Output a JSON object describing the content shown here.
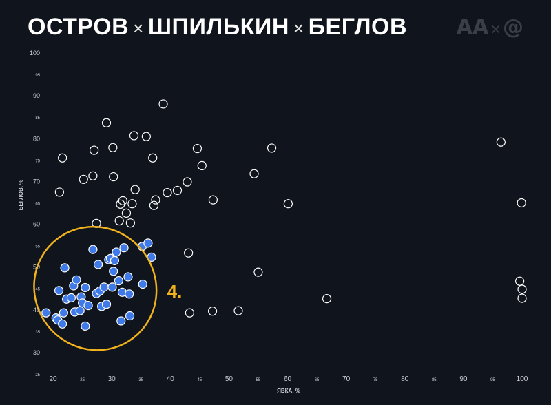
{
  "header": {
    "title_part1": "ОСТРОВ",
    "title_part2": "ШПИЛЬКИН",
    "title_part3": "БЕГЛОВ",
    "separator": "×",
    "logo_left": "AA",
    "logo_sep": "×",
    "logo_right": "@"
  },
  "chart_data": {
    "type": "scatter",
    "xlabel": "ЯВКА, %",
    "ylabel": "БЕГЛОВ, %",
    "xlim": [
      18,
      100
    ],
    "ylim": [
      25,
      100
    ],
    "x_ticks": [
      20,
      25,
      30,
      35,
      40,
      45,
      50,
      55,
      60,
      65,
      70,
      75,
      80,
      85,
      90,
      95,
      100
    ],
    "x_ticks_major": [
      20,
      30,
      40,
      50,
      60,
      70,
      80,
      90,
      100
    ],
    "y_ticks": [
      25,
      30,
      35,
      40,
      45,
      50,
      55,
      60,
      65,
      70,
      75,
      80,
      85,
      90,
      95,
      100
    ],
    "y_ticks_major": [
      30,
      40,
      50,
      60,
      70,
      80,
      90,
      100
    ],
    "grid": false,
    "colors": {
      "background": "#10141c",
      "highlight_fill": "#3f7ae8",
      "outline": "#ffffff",
      "ellipse": "#f2b21c"
    },
    "annotation": {
      "text": "4.",
      "x": 33,
      "y": 44
    },
    "highlight_region": {
      "cx": 27.2,
      "cy": 45,
      "rx": 10.3,
      "ry": 14.6
    },
    "series": [
      {
        "style": "outline",
        "points": [
          [
            21.1,
            67.5
          ],
          [
            21.6,
            75.5
          ],
          [
            25.2,
            70.5
          ],
          [
            26.8,
            71.3
          ],
          [
            27,
            77.3
          ],
          [
            27.4,
            60.2
          ],
          [
            29.1,
            83.7
          ],
          [
            30.2,
            77.9
          ],
          [
            30.3,
            71.1
          ],
          [
            31.3,
            60.8
          ],
          [
            31.5,
            64.7
          ],
          [
            31.9,
            65.5
          ],
          [
            32.5,
            62.6
          ],
          [
            33.2,
            60.3
          ],
          [
            33.5,
            64.8
          ],
          [
            33.8,
            80.7
          ],
          [
            34,
            68.1
          ],
          [
            35.9,
            80.5
          ],
          [
            37,
            75.5
          ],
          [
            37.2,
            64.4
          ],
          [
            37.5,
            65.7
          ],
          [
            38.8,
            88.1
          ],
          [
            39.5,
            67.4
          ],
          [
            41.2,
            67.9
          ],
          [
            42.9,
            69.9
          ],
          [
            43.1,
            53.3
          ],
          [
            43.3,
            39.3
          ],
          [
            44.6,
            77.7
          ],
          [
            45.4,
            73.7
          ],
          [
            47.2,
            39.7
          ],
          [
            47.3,
            65.7
          ],
          [
            51.6,
            39.8
          ],
          [
            54.3,
            71.8
          ],
          [
            55,
            48.8
          ],
          [
            57.3,
            77.8
          ],
          [
            60.1,
            64.8
          ],
          [
            66.7,
            42.6
          ],
          [
            96.4,
            79.2
          ],
          [
            99.6,
            46.7
          ],
          [
            99.9,
            65
          ],
          [
            100,
            44.8
          ],
          [
            100,
            42.7
          ]
        ]
      },
      {
        "style": "filled",
        "points": [
          [
            18.8,
            39.3
          ],
          [
            20.5,
            38.1
          ],
          [
            20.8,
            37.6
          ],
          [
            21,
            44.5
          ],
          [
            21.6,
            36.7
          ],
          [
            21.8,
            39.3
          ],
          [
            22,
            49.8
          ],
          [
            22.3,
            42.5
          ],
          [
            23.1,
            42.8
          ],
          [
            23.5,
            45.6
          ],
          [
            23.7,
            39.5
          ],
          [
            24,
            47
          ],
          [
            24.6,
            39.8
          ],
          [
            24.8,
            43
          ],
          [
            25,
            41.6
          ],
          [
            25.5,
            45.2
          ],
          [
            25.5,
            36.2
          ],
          [
            26,
            41
          ],
          [
            26.8,
            54.1
          ],
          [
            27.4,
            43.8
          ],
          [
            27.7,
            50.6
          ],
          [
            28,
            44.4
          ],
          [
            28.3,
            40.8
          ],
          [
            28.7,
            45.3
          ],
          [
            29.1,
            41.3
          ],
          [
            29.5,
            51.7
          ],
          [
            29.8,
            52
          ],
          [
            30.1,
            45.3
          ],
          [
            30.3,
            49
          ],
          [
            30.5,
            51.5
          ],
          [
            30.8,
            53.5
          ],
          [
            31.2,
            46.8
          ],
          [
            31.6,
            37.4
          ],
          [
            31.8,
            44.1
          ],
          [
            32.1,
            54.5
          ],
          [
            32.8,
            47.7
          ],
          [
            33,
            43.7
          ],
          [
            33.1,
            38.6
          ],
          [
            35.2,
            54.8
          ],
          [
            35.3,
            46
          ],
          [
            36.2,
            55.6
          ],
          [
            36.8,
            52.3
          ]
        ]
      }
    ]
  }
}
